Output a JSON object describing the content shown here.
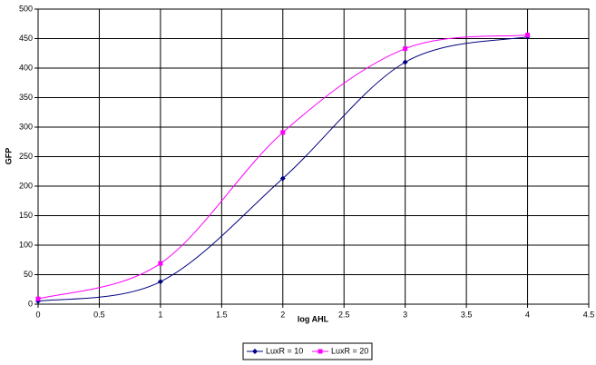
{
  "chart_data": {
    "type": "scatter",
    "smooth": true,
    "x_label": "log AHL",
    "y_label": "GFP",
    "x": [
      0,
      1,
      2,
      3,
      4
    ],
    "series": [
      {
        "name": "LuxR = 10",
        "color": "#000080",
        "marker": "diamond",
        "values": [
          5,
          38,
          213,
          410,
          453
        ]
      },
      {
        "name": "LuxR = 20",
        "color": "#ff00ff",
        "marker": "square",
        "values": [
          9,
          69,
          291,
          433,
          456
        ]
      }
    ],
    "xlim": [
      0,
      4.5
    ],
    "xticks": [
      0,
      0.5,
      1,
      1.5,
      2,
      2.5,
      3,
      3.5,
      4,
      4.5
    ],
    "ylim": [
      0,
      500
    ],
    "yticks": [
      0,
      50,
      100,
      150,
      200,
      250,
      300,
      350,
      400,
      450,
      500
    ],
    "grid": true,
    "legend": "bottom"
  }
}
